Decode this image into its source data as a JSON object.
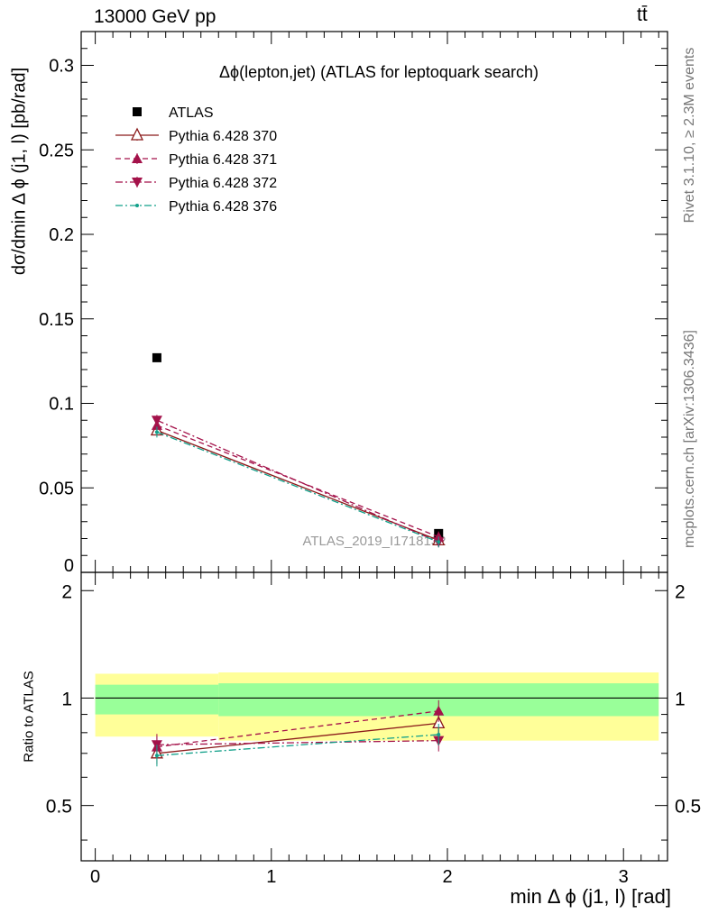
{
  "header": {
    "left": "13000 GeV pp",
    "right": "tt̄"
  },
  "side_labels": {
    "rivet": "Rivet 3.1.10, ≥ 2.3M events",
    "mcplots": "mcplots.cern.ch [arXiv:1306.3436]"
  },
  "chart_data": [
    {
      "type": "line",
      "title": "Δϕ(lepton,jet) (ATLAS for leptoquark search)",
      "xlabel": "min Δ ϕ (j1, l) [rad]",
      "ylabel": "dσ/dmin Δ ϕ (j1, l) [pb/rad]",
      "watermark": "ATLAS_2019_I1718132",
      "xlim": [
        -0.08,
        3.25
      ],
      "ylim": [
        0,
        0.32
      ],
      "y_ticks": [
        "0",
        "0.05",
        "0.1",
        "0.15",
        "0.2",
        "0.25",
        "0.3"
      ],
      "legend_position": "top-left",
      "bins": [
        [
          0,
          0.7
        ],
        [
          0.7,
          3.2
        ]
      ],
      "x": [
        0.35,
        1.95
      ],
      "series": [
        {
          "name": "ATLAS",
          "color": "#000000",
          "marker": "square",
          "values": [
            0.127,
            0.023
          ]
        },
        {
          "name": "Pythia 6.428 370",
          "color": "#8b1a1a",
          "marker": "triangle-up-open",
          "dash": "solid",
          "values": [
            0.084,
            0.019
          ]
        },
        {
          "name": "Pythia 6.428 371",
          "color": "#a4124a",
          "marker": "triangle-up",
          "dash": "dashed",
          "values": [
            0.087,
            0.021
          ]
        },
        {
          "name": "Pythia 6.428 372",
          "color": "#a4124a",
          "marker": "triangle-down",
          "dash": "dashdot",
          "values": [
            0.09,
            0.018
          ]
        },
        {
          "name": "Pythia 6.428 376",
          "color": "#12a08a",
          "marker": "dot",
          "dash": "dashdot",
          "values": [
            0.083,
            0.018
          ]
        }
      ]
    },
    {
      "type": "line",
      "ylabel": "Ratio to ATLAS",
      "xlim": [
        -0.08,
        3.25
      ],
      "ylim": [
        0.35,
        2.25
      ],
      "x_ticks": [
        "0",
        "1",
        "2",
        "3"
      ],
      "y_ticks": [
        "0.5",
        "1",
        "2"
      ],
      "bands": [
        {
          "color": "#ffff99",
          "bins": [
            [
              0,
              0.7
            ],
            [
              0.7,
              3.2
            ]
          ],
          "low": [
            0.78,
            0.76
          ],
          "high": [
            1.17,
            1.18
          ]
        },
        {
          "color": "#99ff99",
          "bins": [
            [
              0,
              0.7
            ],
            [
              0.7,
              3.2
            ]
          ],
          "low": [
            0.9,
            0.89
          ],
          "high": [
            1.09,
            1.1
          ]
        }
      ],
      "x": [
        0.35,
        1.95
      ],
      "series": [
        {
          "name": "Pythia 6.428 370",
          "color": "#8b1a1a",
          "marker": "triangle-up-open",
          "dash": "solid",
          "values": [
            0.7,
            0.85
          ]
        },
        {
          "name": "Pythia 6.428 371",
          "color": "#a4124a",
          "marker": "triangle-up",
          "dash": "dashed",
          "values": [
            0.73,
            0.92
          ]
        },
        {
          "name": "Pythia 6.428 372",
          "color": "#a4124a",
          "marker": "triangle-down",
          "dash": "dashdot",
          "values": [
            0.74,
            0.76
          ]
        },
        {
          "name": "Pythia 6.428 376",
          "color": "#12a08a",
          "marker": "dot",
          "dash": "dashdot",
          "values": [
            0.69,
            0.79
          ]
        }
      ]
    }
  ]
}
